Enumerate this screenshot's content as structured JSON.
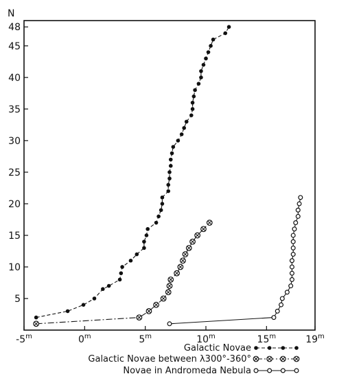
{
  "chart_data": {
    "type": "scatter",
    "title": "",
    "xlabel": "",
    "ylabel": "N",
    "xlim": [
      -5,
      19
    ],
    "ylim": [
      0,
      49
    ],
    "x_ticks": [
      {
        "value": -5,
        "base": "-5",
        "sup": "m"
      },
      {
        "value": 0,
        "base": "0",
        "sup": "m"
      },
      {
        "value": 5,
        "base": "5",
        "sup": "m"
      },
      {
        "value": 10,
        "base": "10",
        "sup": "m"
      },
      {
        "value": 15,
        "base": "15",
        "sup": "m"
      },
      {
        "value": 19,
        "base": "19",
        "sup": "m"
      }
    ],
    "y_ticks": [
      5,
      10,
      15,
      20,
      25,
      30,
      35,
      40,
      45,
      48
    ],
    "grid": false,
    "legend_position": "bottom-right",
    "series": [
      {
        "name": "Galactic Novae",
        "marker": "filled-circle",
        "line": "dashed",
        "legend_key": "●-●-●-●",
        "points": [
          [
            -4.0,
            2
          ],
          [
            -1.4,
            3
          ],
          [
            -0.1,
            4
          ],
          [
            0.8,
            5
          ],
          [
            1.5,
            6.5
          ],
          [
            2.0,
            7
          ],
          [
            2.9,
            8
          ],
          [
            3.0,
            9
          ],
          [
            3.1,
            10
          ],
          [
            3.8,
            11
          ],
          [
            4.3,
            12
          ],
          [
            4.9,
            13
          ],
          [
            4.9,
            14
          ],
          [
            5.1,
            15
          ],
          [
            5.2,
            16
          ],
          [
            5.9,
            17
          ],
          [
            6.1,
            18
          ],
          [
            6.3,
            19
          ],
          [
            6.4,
            20
          ],
          [
            6.4,
            21
          ],
          [
            6.9,
            22
          ],
          [
            6.9,
            23
          ],
          [
            7.0,
            24
          ],
          [
            7.0,
            25
          ],
          [
            7.1,
            26
          ],
          [
            7.1,
            27
          ],
          [
            7.2,
            28
          ],
          [
            7.3,
            29
          ],
          [
            7.7,
            30
          ],
          [
            8.0,
            31
          ],
          [
            8.2,
            32
          ],
          [
            8.4,
            33
          ],
          [
            8.8,
            34
          ],
          [
            8.9,
            35
          ],
          [
            8.9,
            36
          ],
          [
            9.0,
            37
          ],
          [
            9.1,
            38
          ],
          [
            9.4,
            39
          ],
          [
            9.6,
            40
          ],
          [
            9.6,
            41
          ],
          [
            9.8,
            42
          ],
          [
            10.0,
            43
          ],
          [
            10.2,
            44
          ],
          [
            10.4,
            45
          ],
          [
            10.6,
            46
          ],
          [
            11.6,
            47
          ],
          [
            11.9,
            48
          ]
        ]
      },
      {
        "name": "Galactic Novae between λ300°-360°",
        "marker": "circle-cross",
        "line": "dash-dot",
        "legend_key": "⊗-·-⊗-·-⊗",
        "points": [
          [
            -4.0,
            1
          ],
          [
            4.5,
            2
          ],
          [
            5.3,
            3
          ],
          [
            5.9,
            4
          ],
          [
            6.5,
            5
          ],
          [
            6.9,
            6
          ],
          [
            7.0,
            7
          ],
          [
            7.1,
            8
          ],
          [
            7.6,
            9
          ],
          [
            7.9,
            10
          ],
          [
            8.1,
            11
          ],
          [
            8.3,
            12
          ],
          [
            8.6,
            13
          ],
          [
            8.9,
            14
          ],
          [
            9.3,
            15
          ],
          [
            9.8,
            16
          ],
          [
            10.3,
            17
          ]
        ]
      },
      {
        "name": "Novae in Andromeda Nebula",
        "marker": "open-circle",
        "line": "solid",
        "legend_key": "○—○—○—○",
        "points": [
          [
            7.0,
            1
          ],
          [
            15.6,
            2
          ],
          [
            15.9,
            3
          ],
          [
            16.2,
            4
          ],
          [
            16.3,
            5
          ],
          [
            16.7,
            6
          ],
          [
            17.0,
            7
          ],
          [
            17.1,
            8
          ],
          [
            17.1,
            9
          ],
          [
            17.1,
            10
          ],
          [
            17.1,
            11
          ],
          [
            17.2,
            12
          ],
          [
            17.2,
            13
          ],
          [
            17.2,
            14
          ],
          [
            17.2,
            15
          ],
          [
            17.3,
            16
          ],
          [
            17.4,
            17
          ],
          [
            17.6,
            18
          ],
          [
            17.6,
            19
          ],
          [
            17.7,
            20
          ],
          [
            17.8,
            21
          ]
        ]
      }
    ]
  }
}
